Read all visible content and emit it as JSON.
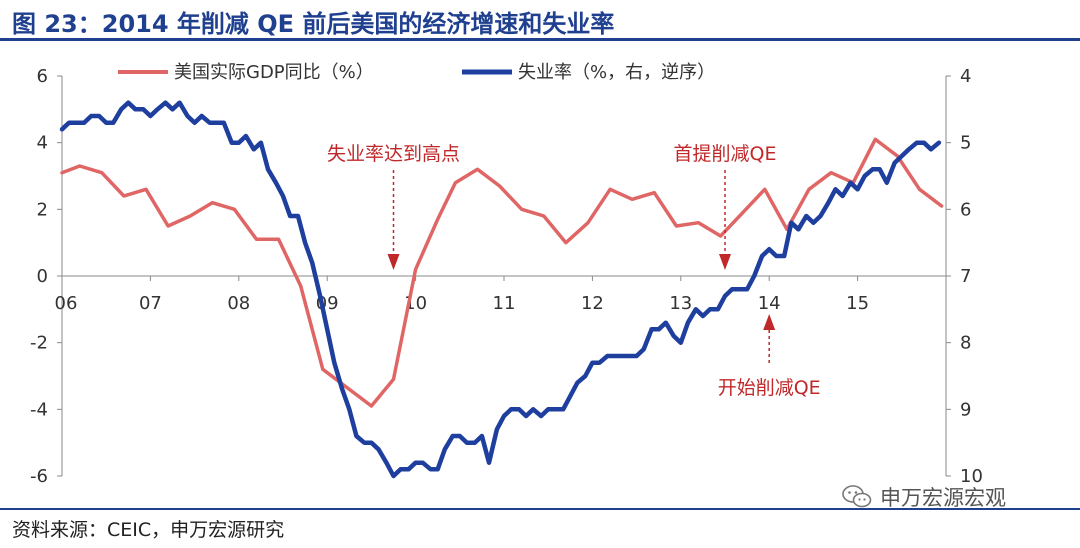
{
  "title": "图 23：2014 年削减 QE 前后美国的经济增速和失业率",
  "source": "资料来源：CEIC，申万宏源研究",
  "watermark": {
    "text": "申万宏源宏观",
    "icon": "wechat-icon"
  },
  "colors": {
    "gdp": "#e06666",
    "unemployment": "#1f3f9f",
    "annotation": "#c0282a",
    "title": "#1f3f8f"
  },
  "chart_data": {
    "type": "line",
    "x_tick_labels": [
      "06",
      "07",
      "08",
      "09",
      "10",
      "11",
      "12",
      "13",
      "14",
      "15"
    ],
    "x_tick_values": [
      2006,
      2007,
      2008,
      2009,
      2010,
      2011,
      2012,
      2013,
      2014,
      2015
    ],
    "xlim": [
      2006,
      2016
    ],
    "y_left": {
      "ticks": [
        "6",
        "4",
        "2",
        "0",
        "-2",
        "-4",
        "-6"
      ],
      "lim": [
        -6,
        6
      ]
    },
    "y_right": {
      "ticks": [
        "4",
        "5",
        "6",
        "7",
        "8",
        "9",
        "10"
      ],
      "lim": [
        4,
        10
      ],
      "reversed": true
    },
    "grid": false,
    "legend_position": "top",
    "series": [
      {
        "name": "美国实际GDP同比（%）",
        "axis": "left",
        "x": [
          2006.0,
          2006.2,
          2006.45,
          2006.7,
          2006.95,
          2007.2,
          2007.45,
          2007.7,
          2007.95,
          2008.2,
          2008.45,
          2008.7,
          2008.95,
          2009.2,
          2009.5,
          2009.75,
          2010.0,
          2010.25,
          2010.45,
          2010.7,
          2010.95,
          2011.2,
          2011.45,
          2011.7,
          2011.95,
          2012.2,
          2012.45,
          2012.7,
          2012.95,
          2013.2,
          2013.45,
          2013.7,
          2013.95,
          2014.2,
          2014.45,
          2014.7,
          2014.95,
          2015.2,
          2015.45,
          2015.7,
          2015.95
        ],
        "y": [
          3.1,
          3.3,
          3.1,
          2.4,
          2.6,
          1.5,
          1.8,
          2.2,
          2.0,
          1.1,
          1.1,
          -0.3,
          -2.8,
          -3.3,
          -3.9,
          -3.1,
          0.2,
          1.7,
          2.8,
          3.2,
          2.7,
          2.0,
          1.8,
          1.0,
          1.6,
          2.6,
          2.3,
          2.5,
          1.5,
          1.6,
          1.2,
          1.9,
          2.6,
          1.4,
          2.6,
          3.1,
          2.8,
          4.1,
          3.6,
          2.6,
          2.1
        ]
      },
      {
        "name": "失业率（%，右，逆序）",
        "axis": "right",
        "x": [
          2006.0,
          2006.08,
          2006.17,
          2006.25,
          2006.33,
          2006.42,
          2006.5,
          2006.58,
          2006.67,
          2006.75,
          2006.83,
          2006.92,
          2007.0,
          2007.08,
          2007.17,
          2007.25,
          2007.33,
          2007.42,
          2007.5,
          2007.58,
          2007.67,
          2007.75,
          2007.83,
          2007.92,
          2008.0,
          2008.08,
          2008.17,
          2008.25,
          2008.33,
          2008.42,
          2008.5,
          2008.58,
          2008.67,
          2008.75,
          2008.83,
          2008.92,
          2009.0,
          2009.08,
          2009.17,
          2009.25,
          2009.33,
          2009.42,
          2009.5,
          2009.58,
          2009.67,
          2009.75,
          2009.83,
          2009.92,
          2010.0,
          2010.08,
          2010.17,
          2010.25,
          2010.33,
          2010.42,
          2010.5,
          2010.58,
          2010.67,
          2010.75,
          2010.83,
          2010.92,
          2011.0,
          2011.08,
          2011.17,
          2011.25,
          2011.33,
          2011.42,
          2011.5,
          2011.58,
          2011.67,
          2011.75,
          2011.83,
          2011.92,
          2012.0,
          2012.08,
          2012.17,
          2012.25,
          2012.33,
          2012.42,
          2012.5,
          2012.58,
          2012.67,
          2012.75,
          2012.83,
          2012.92,
          2013.0,
          2013.08,
          2013.17,
          2013.25,
          2013.33,
          2013.42,
          2013.5,
          2013.58,
          2013.67,
          2013.75,
          2013.83,
          2013.92,
          2014.0,
          2014.08,
          2014.17,
          2014.25,
          2014.33,
          2014.42,
          2014.5,
          2014.58,
          2014.67,
          2014.75,
          2014.83,
          2014.92,
          2015.0,
          2015.08,
          2015.17,
          2015.25,
          2015.33,
          2015.42,
          2015.5,
          2015.58,
          2015.67,
          2015.75,
          2015.83,
          2015.92
        ],
        "y": [
          4.8,
          4.7,
          4.7,
          4.7,
          4.6,
          4.6,
          4.7,
          4.7,
          4.5,
          4.4,
          4.5,
          4.5,
          4.6,
          4.5,
          4.4,
          4.5,
          4.4,
          4.6,
          4.7,
          4.6,
          4.7,
          4.7,
          4.7,
          5.0,
          5.0,
          4.9,
          5.1,
          5.0,
          5.4,
          5.6,
          5.8,
          6.1,
          6.1,
          6.5,
          6.8,
          7.3,
          7.8,
          8.3,
          8.7,
          9.0,
          9.4,
          9.5,
          9.5,
          9.6,
          9.8,
          10.0,
          9.9,
          9.9,
          9.8,
          9.8,
          9.9,
          9.9,
          9.6,
          9.4,
          9.4,
          9.5,
          9.5,
          9.4,
          9.8,
          9.3,
          9.1,
          9.0,
          9.0,
          9.1,
          9.0,
          9.1,
          9.0,
          9.0,
          9.0,
          8.8,
          8.6,
          8.5,
          8.3,
          8.3,
          8.2,
          8.2,
          8.2,
          8.2,
          8.2,
          8.1,
          7.8,
          7.8,
          7.7,
          7.9,
          8.0,
          7.7,
          7.5,
          7.6,
          7.5,
          7.5,
          7.3,
          7.2,
          7.2,
          7.2,
          7.0,
          6.7,
          6.6,
          6.7,
          6.7,
          6.2,
          6.3,
          6.1,
          6.2,
          6.1,
          5.9,
          5.7,
          5.8,
          5.6,
          5.7,
          5.5,
          5.4,
          5.4,
          5.6,
          5.3,
          5.2,
          5.1,
          5.0,
          5.0,
          5.1,
          5.0
        ]
      }
    ],
    "annotations": [
      {
        "text": "失业率达到高点",
        "x": 2009.75,
        "arrow": "down"
      },
      {
        "text": "首提削减QE",
        "x": 2013.5,
        "arrow": "down"
      },
      {
        "text": "开始削减QE",
        "x": 2014.0,
        "arrow": "up"
      }
    ]
  }
}
